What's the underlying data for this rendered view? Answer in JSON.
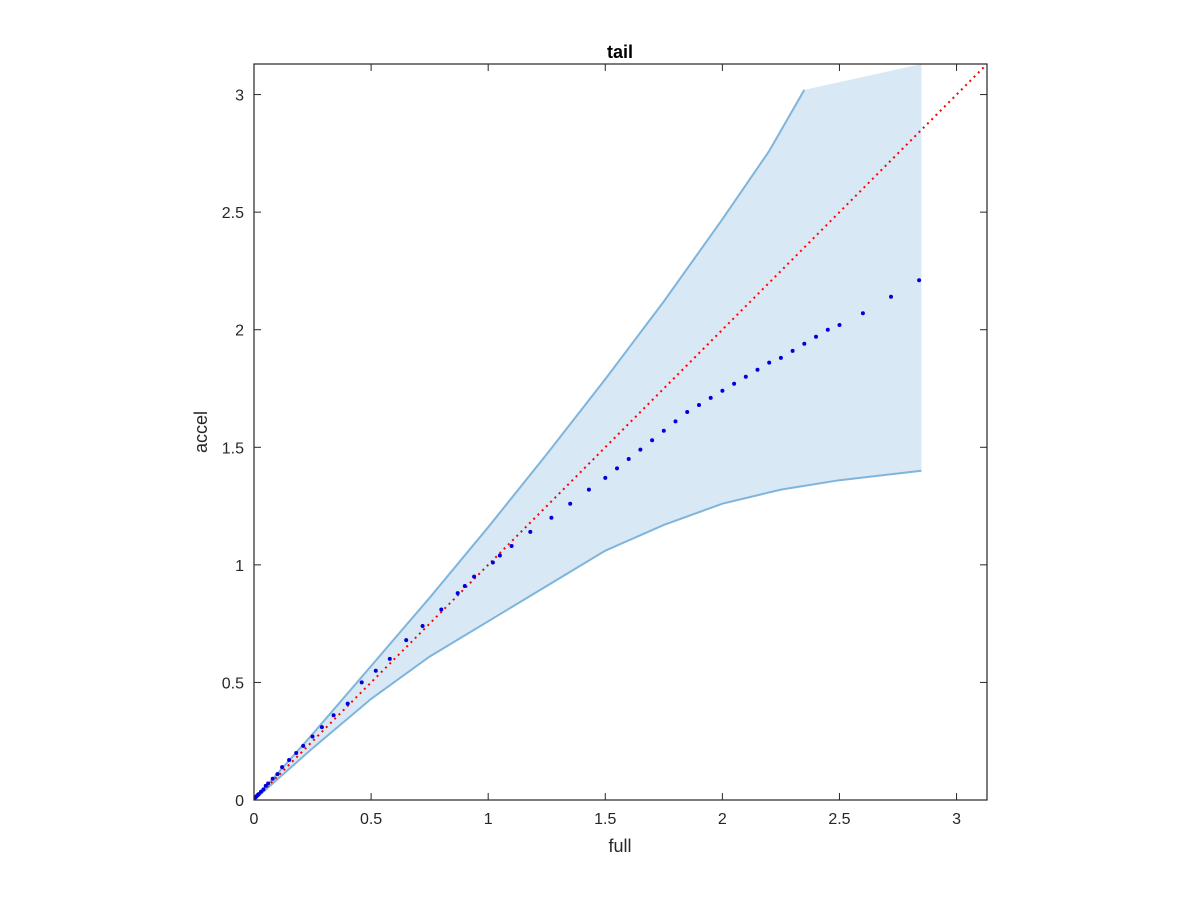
{
  "chart_data": {
    "type": "scatter",
    "title": "tail",
    "xlabel": "full",
    "ylabel": "accel",
    "xlim": [
      0,
      3.13
    ],
    "ylim": [
      0,
      3.13
    ],
    "xticks": [
      "0",
      "0.5",
      "1",
      "1.5",
      "2",
      "2.5",
      "3"
    ],
    "yticks": [
      "0",
      "0.5",
      "1",
      "1.5",
      "2",
      "2.5",
      "3"
    ],
    "grid": false,
    "legend": "none",
    "colors": {
      "points": "#0000dd",
      "reference_line": "#ff0000",
      "band_fill": "#d8e8f4",
      "band_edge": "#7fb5dc",
      "axes": "#262626"
    },
    "reference_line": {
      "style": "dotted",
      "x": [
        0,
        3.13
      ],
      "y": [
        0,
        3.13
      ]
    },
    "band": {
      "upper": [
        [
          0,
          0
        ],
        [
          0.25,
          0.28
        ],
        [
          0.5,
          0.57
        ],
        [
          0.75,
          0.86
        ],
        [
          1.0,
          1.16
        ],
        [
          1.25,
          1.47
        ],
        [
          1.5,
          1.79
        ],
        [
          1.75,
          2.12
        ],
        [
          2.0,
          2.47
        ],
        [
          2.2,
          2.76
        ],
        [
          2.35,
          3.02
        ],
        [
          2.85,
          3.13
        ]
      ],
      "lower": [
        [
          0,
          0
        ],
        [
          0.25,
          0.22
        ],
        [
          0.5,
          0.43
        ],
        [
          0.75,
          0.61
        ],
        [
          1.0,
          0.76
        ],
        [
          1.25,
          0.91
        ],
        [
          1.5,
          1.06
        ],
        [
          1.75,
          1.17
        ],
        [
          2.0,
          1.26
        ],
        [
          2.25,
          1.32
        ],
        [
          2.5,
          1.36
        ],
        [
          2.85,
          1.4
        ]
      ]
    },
    "points": {
      "x": [
        0.005,
        0.01,
        0.015,
        0.02,
        0.03,
        0.04,
        0.05,
        0.06,
        0.08,
        0.1,
        0.12,
        0.15,
        0.18,
        0.21,
        0.25,
        0.29,
        0.34,
        0.4,
        0.46,
        0.52,
        0.58,
        0.65,
        0.72,
        0.8,
        0.87,
        0.9,
        0.94,
        1.02,
        1.05,
        1.1,
        1.18,
        1.27,
        1.35,
        1.43,
        1.5,
        1.55,
        1.6,
        1.65,
        1.7,
        1.75,
        1.8,
        1.85,
        1.9,
        1.95,
        2.0,
        2.05,
        2.1,
        2.15,
        2.2,
        2.25,
        2.3,
        2.35,
        2.4,
        2.45,
        2.5,
        2.6,
        2.72,
        2.84
      ],
      "y": [
        0.01,
        0.015,
        0.02,
        0.025,
        0.035,
        0.045,
        0.06,
        0.07,
        0.09,
        0.11,
        0.14,
        0.17,
        0.2,
        0.23,
        0.27,
        0.31,
        0.36,
        0.41,
        0.5,
        0.55,
        0.6,
        0.68,
        0.74,
        0.81,
        0.88,
        0.91,
        0.95,
        1.01,
        1.04,
        1.08,
        1.14,
        1.2,
        1.26,
        1.32,
        1.37,
        1.41,
        1.45,
        1.49,
        1.53,
        1.57,
        1.61,
        1.65,
        1.68,
        1.71,
        1.74,
        1.77,
        1.8,
        1.83,
        1.86,
        1.88,
        1.91,
        1.94,
        1.97,
        2.0,
        2.02,
        2.07,
        2.14,
        2.21
      ]
    }
  }
}
